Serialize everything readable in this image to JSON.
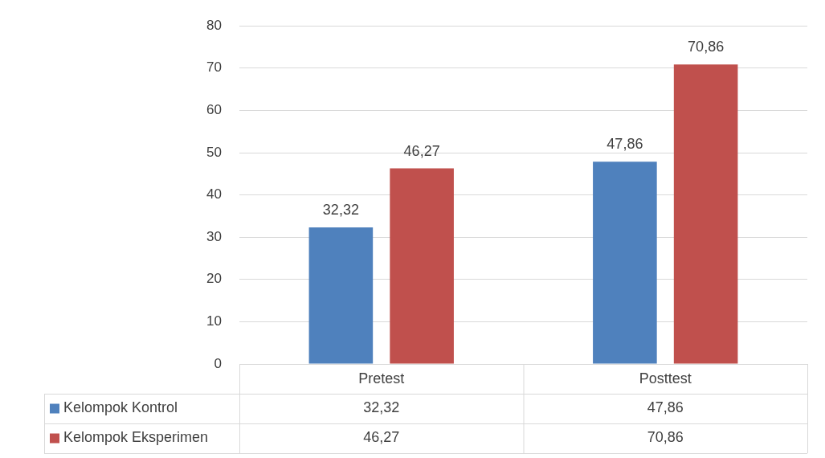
{
  "chart_data": {
    "type": "bar",
    "categories": [
      "Pretest",
      "Posttest"
    ],
    "series": [
      {
        "name": "Kelompok Kontrol",
        "color": "#4f81bd",
        "values": [
          32.32,
          47.86
        ],
        "value_labels": [
          "32,32",
          "47,86"
        ]
      },
      {
        "name": "Kelompok Eksperimen",
        "color": "#c0504d",
        "values": [
          46.27,
          70.86
        ],
        "value_labels": [
          "46,27",
          "70,86"
        ]
      }
    ],
    "ylim": [
      0,
      80
    ],
    "yticks": [
      0,
      10,
      20,
      30,
      40,
      50,
      60,
      70,
      80
    ],
    "grid": "y",
    "legend": "bottom left"
  }
}
